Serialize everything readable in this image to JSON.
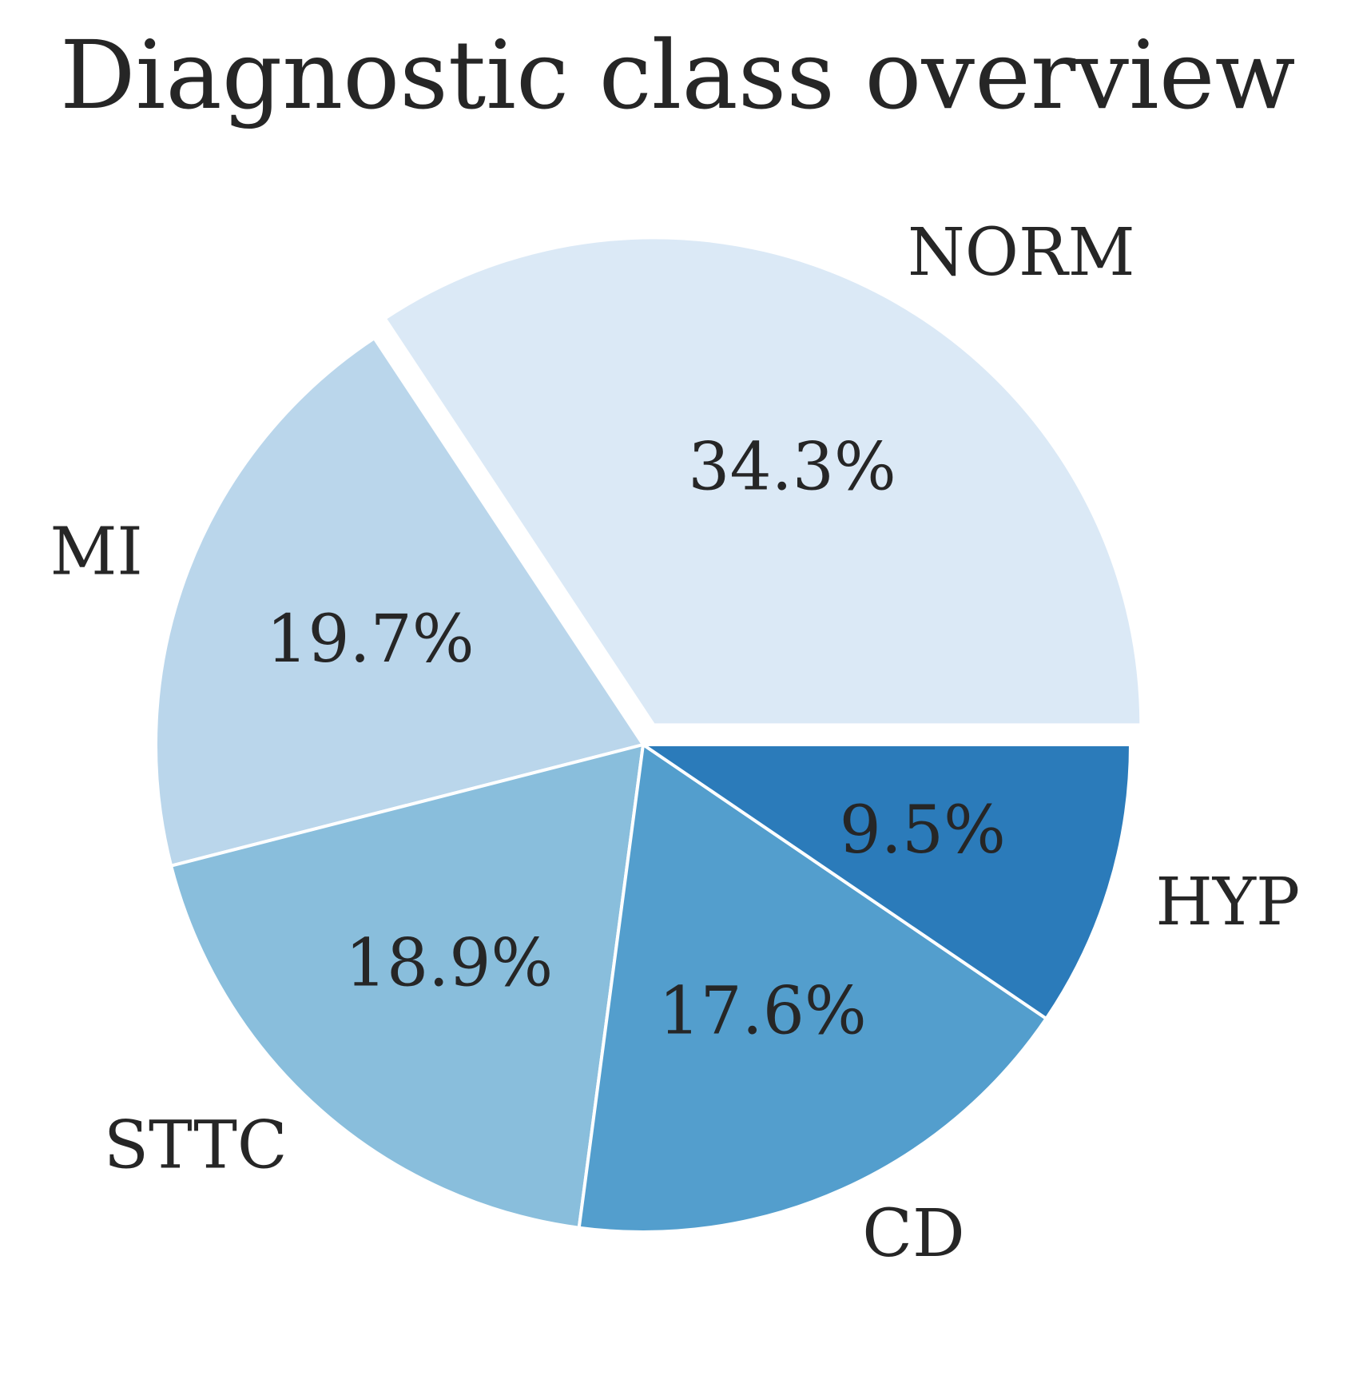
{
  "chart_data": {
    "type": "pie",
    "title": "Diagnostic class overview",
    "start_angle_deg": 0,
    "direction": "counterclockwise",
    "slices": [
      {
        "label": "NORM",
        "value": 34.3,
        "pct_label": "34.3%",
        "color": "#dbe9f6",
        "exploded": true
      },
      {
        "label": "MI",
        "value": 19.7,
        "pct_label": "19.7%",
        "color": "#bad6eb",
        "exploded": false
      },
      {
        "label": "STTC",
        "value": 18.9,
        "pct_label": "18.9%",
        "color": "#89bedc",
        "exploded": false
      },
      {
        "label": "CD",
        "value": 17.6,
        "pct_label": "17.6%",
        "color": "#539ecd",
        "exploded": false
      },
      {
        "label": "HYP",
        "value": 9.5,
        "pct_label": "9.5%",
        "color": "#2b7bba",
        "exploded": false
      }
    ],
    "edge_color": "#ffffff",
    "legend": "none"
  }
}
